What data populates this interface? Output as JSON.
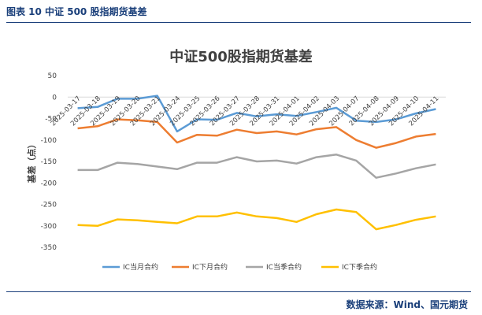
{
  "header": {
    "figure_title": "图表 10  中证 500 股指期货基差"
  },
  "footer": {
    "source": "数据来源：Wind、国元期货"
  },
  "colors": {
    "frame": "#1a3f7a",
    "text": "#404040"
  },
  "chart_data": {
    "type": "line",
    "title": "中证500股指期货基差",
    "ylabel": "基差（点）",
    "xlabel": "",
    "ylim": [
      -350,
      50
    ],
    "yticks": [
      50,
      0,
      -50,
      -100,
      -150,
      -200,
      -250,
      -300,
      -350
    ],
    "grid": false,
    "legend_position": "bottom",
    "categories": [
      "2025-03-17",
      "2025-03-18",
      "2025-03-19",
      "2025-03-20",
      "2025-03-21",
      "2025-03-24",
      "2025-03-25",
      "2025-03-26",
      "2025-03-27",
      "2025-03-28",
      "2025-03-31",
      "2025-04-01",
      "2025-04-02",
      "2025-04-03",
      "2025-04-07",
      "2025-04-08",
      "2025-04-09",
      "2025-04-10",
      "2025-04-11"
    ],
    "series": [
      {
        "name": "IC当月合约",
        "color": "#5b9bd5",
        "values": [
          -26,
          -23,
          -4,
          -4,
          3,
          -80,
          -52,
          -53,
          -37,
          -45,
          -40,
          -44,
          -35,
          -25,
          -55,
          -58,
          -52,
          -38,
          -28
        ]
      },
      {
        "name": "IC下月合约",
        "color": "#ed7d31",
        "values": [
          -73,
          -68,
          -52,
          -54,
          -58,
          -106,
          -88,
          -90,
          -76,
          -84,
          -80,
          -87,
          -75,
          -70,
          -100,
          -118,
          -107,
          -92,
          -86
        ]
      },
      {
        "name": "IC当季合约",
        "color": "#a5a5a5",
        "values": [
          -170,
          -170,
          -153,
          -156,
          -162,
          -168,
          -153,
          -153,
          -140,
          -150,
          -148,
          -155,
          -140,
          -134,
          -148,
          -188,
          -178,
          -166,
          -157
        ]
      },
      {
        "name": "IC下季合约",
        "color": "#ffc000",
        "values": [
          -298,
          -300,
          -285,
          -287,
          -291,
          -294,
          -278,
          -278,
          -269,
          -278,
          -282,
          -291,
          -273,
          -262,
          -268,
          -308,
          -298,
          -286,
          -278
        ]
      }
    ]
  }
}
